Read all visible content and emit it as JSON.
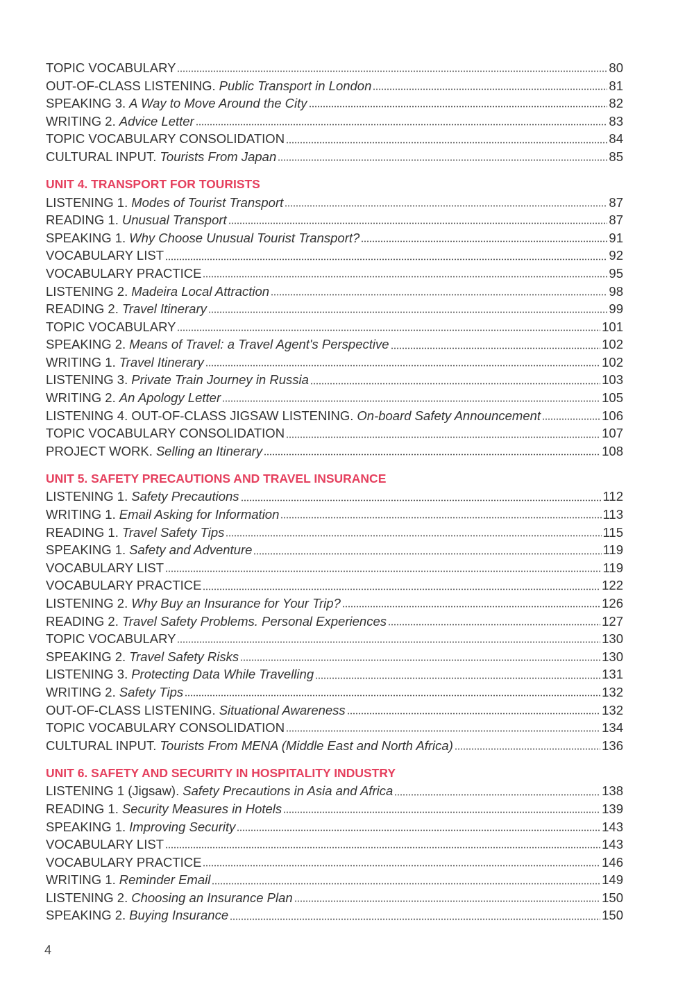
{
  "sections": [
    {
      "entries": [
        {
          "label": "TOPIC VOCABULARY",
          "page": 80
        },
        {
          "label": "OUT-OF-CLASS LISTENING.",
          "title": "Public Transport in London",
          "page": 81
        },
        {
          "label": "SPEAKING 3.",
          "title": "A Way to Move Around the City",
          "page": 82
        },
        {
          "label": "WRITING 2.",
          "title": "Advice Letter",
          "page": 83
        },
        {
          "label": "TOPIC VOCABULARY CONSOLIDATION",
          "page": 84
        },
        {
          "label": "CULTURAL INPUT.",
          "title": "Tourists From Japan",
          "page": 85
        }
      ]
    },
    {
      "heading": "UNIT 4. TRANSPORT FOR TOURISTS",
      "entries": [
        {
          "label": "LISTENING 1.",
          "title": "Modes of Tourist Transport",
          "page": 87
        },
        {
          "label": "READING 1.",
          "title": "Unusual Transport",
          "page": 87
        },
        {
          "label": "SPEAKING 1.",
          "title": "Why Choose Unusual Tourist Transport?",
          "page": 91
        },
        {
          "label": "VOCABULARY LIST",
          "page": 92
        },
        {
          "label": "VOCABULARY PRACTICE",
          "page": 95
        },
        {
          "label": "LISTENING 2.",
          "title": "Madeira Local Attraction",
          "page": 98
        },
        {
          "label": "READING 2.",
          "title": "Travel Itinerary",
          "page": 99
        },
        {
          "label": "TOPIC VOCABULARY",
          "page": 101
        },
        {
          "label": "SPEAKING 2.",
          "title": "Means of Travel: a Travel Agent's Perspective",
          "page": 102
        },
        {
          "label": "WRITING 1.",
          "title": "Travel Itinerary",
          "page": 102
        },
        {
          "label": "LISTENING 3.",
          "title": "Private Train Journey in Russia",
          "page": 103
        },
        {
          "label": "WRITING 2.",
          "title": "An Apology Letter",
          "page": 105
        },
        {
          "label": "LISTENING 4. OUT-OF-CLASS JIGSAW LISTENING.",
          "title": "On-board Safety Announcement",
          "page": 106
        },
        {
          "label": "TOPIC VOCABULARY CONSOLIDATION",
          "page": 107
        },
        {
          "label": "PROJECT WORK.",
          "title": "Selling an Itinerary",
          "page": 108
        }
      ]
    },
    {
      "heading": "UNIT 5. SAFETY PRECAUTIONS AND TRAVEL INSURANCE",
      "entries": [
        {
          "label": "LISTENING 1.",
          "title": "Safety Precautions",
          "page": 112
        },
        {
          "label": "WRITING 1.",
          "title": "Email Asking for Information",
          "page": 113
        },
        {
          "label": "READING 1.",
          "title": "Travel Safety Tips",
          "page": 115
        },
        {
          "label": "SPEAKING 1.",
          "title": "Safety and Adventure",
          "page": 119
        },
        {
          "label": "VOCABULARY LIST",
          "page": 119
        },
        {
          "label": "VOCABULARY PRACTICE",
          "page": 122
        },
        {
          "label": "LISTENING 2.",
          "title": "Why Buy an Insurance for Your Trip?",
          "page": 126
        },
        {
          "label": "READING 2.",
          "title": "Travel Safety Problems. Personal Experiences",
          "page": 127
        },
        {
          "label": "TOPIC VOCABULARY",
          "page": 130
        },
        {
          "label": "SPEAKING 2.",
          "title": "Travel Safety Risks",
          "page": 130
        },
        {
          "label": "LISTENING 3.",
          "title": "Protecting Data While Travelling",
          "page": 131
        },
        {
          "label": "WRITING 2.",
          "title": "Safety Tips",
          "page": 132
        },
        {
          "label": "OUT-OF-CLASS LISTENING.",
          "title": "Situational Awareness",
          "page": 132
        },
        {
          "label": "TOPIC VOCABULARY CONSOLIDATION",
          "page": 134
        },
        {
          "label": "CULTURAL INPUT.",
          "title": "Tourists From MENA (Middle East and North Africa)",
          "page": 136
        }
      ]
    },
    {
      "heading": "UNIT 6. SAFETY AND SECURITY IN HOSPITALITY INDUSTRY",
      "entries": [
        {
          "label": "LISTENING 1 (Jigsaw).",
          "title": "Safety Precautions in Asia and Africa",
          "page": 138
        },
        {
          "label": "READING 1.",
          "title": "Security Measures in Hotels",
          "page": 139
        },
        {
          "label": "SPEAKING 1.",
          "title": "Improving Security",
          "page": 143
        },
        {
          "label": "VOCABULARY LIST",
          "page": 143
        },
        {
          "label": "VOCABULARY PRACTICE",
          "page": 146
        },
        {
          "label": "WRITING 1.",
          "title": "Reminder Email",
          "page": 149
        },
        {
          "label": "LISTENING 2.",
          "title": "Choosing an Insurance Plan",
          "page": 150
        },
        {
          "label": "SPEAKING 2.",
          "title": "Buying Insurance",
          "page": 150
        }
      ]
    }
  ],
  "page_number": 4
}
